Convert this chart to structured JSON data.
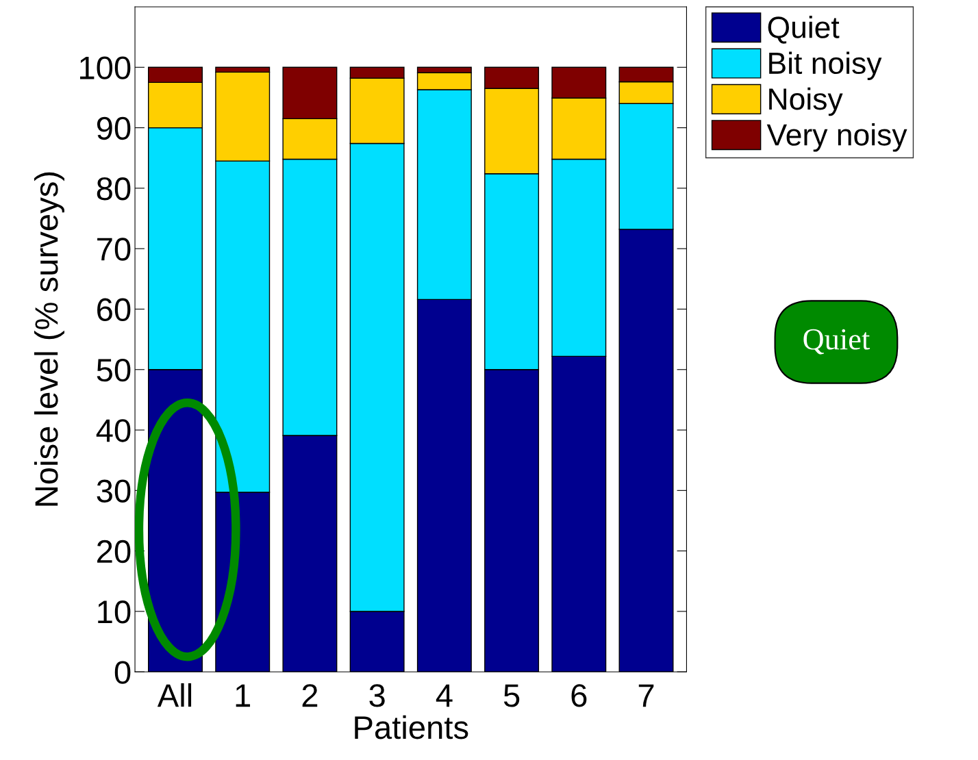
{
  "chart_data": {
    "type": "bar",
    "stacked": true,
    "xlabel": "Patients",
    "ylabel": "Noise level (% surveys)",
    "categories": [
      "All",
      "1",
      "2",
      "3",
      "4",
      "5",
      "6",
      "7"
    ],
    "series": [
      {
        "name": "Quiet",
        "color": "#00008f",
        "values": [
          50,
          29.7,
          39.1,
          10,
          61.6,
          50,
          52.2,
          73.2
        ]
      },
      {
        "name": "Bit noisy",
        "color": "#00dfff",
        "values": [
          40,
          54.8,
          45.7,
          77.4,
          34.7,
          32.4,
          32.6,
          20.8
        ]
      },
      {
        "name": "Noisy",
        "color": "#ffcf00",
        "values": [
          7.5,
          14.7,
          6.7,
          10.8,
          2.8,
          14.1,
          10.1,
          3.6
        ]
      },
      {
        "name": "Very noisy",
        "color": "#7f0000",
        "values": [
          2.5,
          0.8,
          8.5,
          1.8,
          0.9,
          3.5,
          5.1,
          2.4
        ]
      }
    ],
    "ylim": [
      0,
      110
    ],
    "yticks": [
      0,
      10,
      20,
      30,
      40,
      50,
      60,
      70,
      80,
      90,
      100
    ],
    "grid": false,
    "legend": "top right",
    "annotations": [
      "Quiet"
    ]
  }
}
